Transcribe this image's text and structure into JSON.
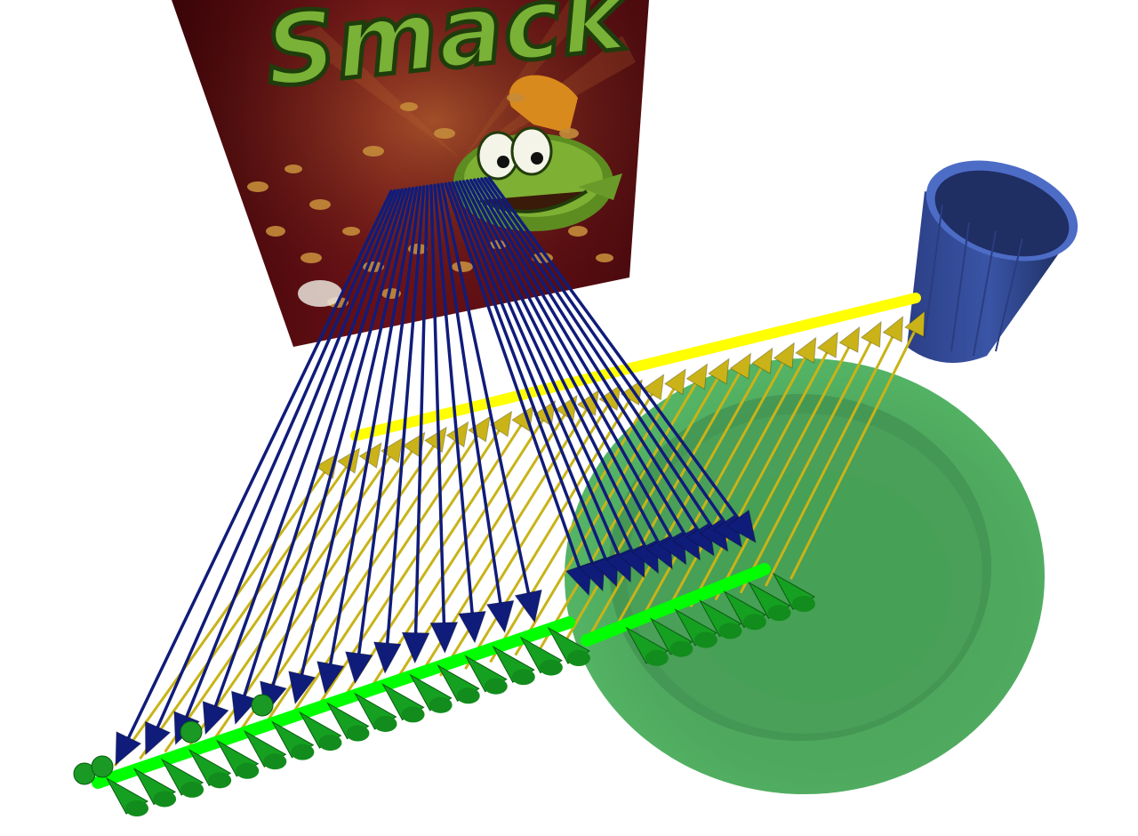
{
  "scene": {
    "background": "#ffffff",
    "objects": [
      {
        "name": "cereal-box",
        "colors": {
          "front": "#5a0d12",
          "dark": "#2d0507",
          "logo_fill": "#79b236",
          "logo_outline": "#1f3d0c"
        },
        "text": "Smack"
      },
      {
        "name": "cup",
        "colors": {
          "outer": "#3a55a6",
          "dark": "#1c2b5d",
          "light": "#4c6cc6"
        }
      },
      {
        "name": "plate",
        "colors": {
          "base": "#4aa45c",
          "rim": "#57b868",
          "shadow": "#3a8a4a"
        }
      }
    ],
    "markers": {
      "yellow_path_color": "#ffff00",
      "green_path_color": "#00ff00",
      "yellow_arrow_color": "#c9b318",
      "blue_arrow_color": "#101c7a",
      "green_cone_color": "#16a021"
    }
  }
}
